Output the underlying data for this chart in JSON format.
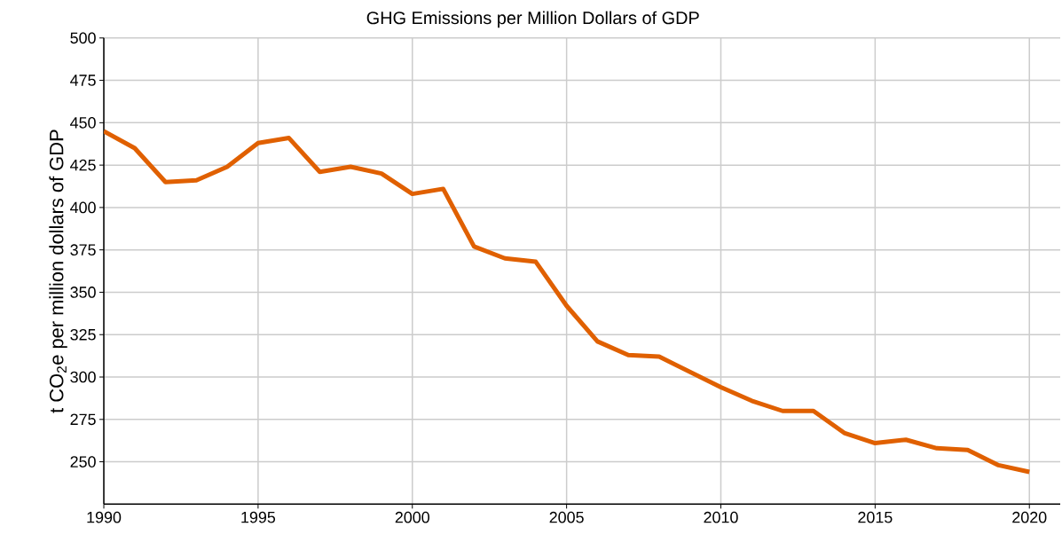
{
  "chart_data": {
    "type": "line",
    "title": "GHG Emissions per Million Dollars of GDP",
    "ylabel": "t CO$_{2}$e  per million dollars of GDP",
    "x": [
      1990,
      1991,
      1992,
      1993,
      1994,
      1995,
      1996,
      1997,
      1998,
      1999,
      2000,
      2001,
      2002,
      2003,
      2004,
      2005,
      2006,
      2007,
      2008,
      2009,
      2010,
      2011,
      2012,
      2013,
      2014,
      2015,
      2016,
      2017,
      2018,
      2019,
      2020
    ],
    "series": [
      {
        "color": "#e06000",
        "values": [
          445,
          435,
          415,
          416,
          424,
          438,
          441,
          421,
          424,
          420,
          408,
          411,
          377,
          370,
          368,
          342,
          321,
          313,
          312,
          303,
          294,
          286,
          280,
          280,
          267,
          261,
          263,
          258,
          257,
          248,
          244
        ]
      }
    ],
    "xlim": [
      1990,
      2021
    ],
    "ylim": [
      225,
      500
    ],
    "xticks": [
      1990,
      1995,
      2000,
      2005,
      2010,
      2015,
      2020
    ],
    "yticks": [
      250,
      275,
      300,
      325,
      350,
      375,
      400,
      425,
      450,
      475,
      500
    ],
    "grid": true
  }
}
